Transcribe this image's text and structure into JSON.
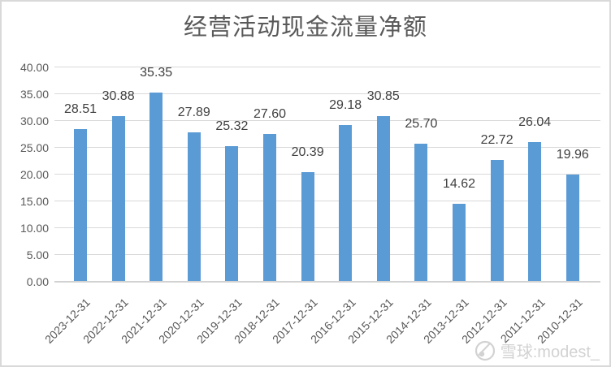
{
  "chart_data": {
    "type": "bar",
    "title": "经营活动现金流量净额",
    "categories": [
      "2023-12-31",
      "2022-12-31",
      "2021-12-31",
      "2020-12-31",
      "2019-12-31",
      "2018-12-31",
      "2017-12-31",
      "2016-12-31",
      "2015-12-31",
      "2014-12-31",
      "2013-12-31",
      "2012-12-31",
      "2011-12-31",
      "2010-12-31"
    ],
    "values": [
      28.51,
      30.88,
      35.35,
      27.89,
      25.32,
      27.6,
      20.39,
      29.18,
      30.85,
      25.7,
      14.62,
      22.72,
      26.04,
      19.96
    ],
    "data_labels": [
      "28.51",
      "30.88",
      "35.35",
      "27.89",
      "25.32",
      "27.60",
      "20.39",
      "29.18",
      "30.85",
      "25.70",
      "14.62",
      "22.72",
      "26.04",
      "19.96"
    ],
    "xlabel": "",
    "ylabel": "",
    "ylim": [
      0,
      40
    ],
    "ytick_step": 5,
    "y_tick_labels": [
      "0.00",
      "5.00",
      "10.00",
      "15.00",
      "20.00",
      "25.00",
      "30.00",
      "35.00",
      "40.00"
    ],
    "grid": true,
    "legend": "none",
    "bar_color": "#5b9bd5"
  },
  "watermark": {
    "logo": "xueqiu-snowball-logo",
    "text": "雪球:modest_"
  },
  "colors": {
    "bar": "#5b9bd5",
    "gridline": "#d9d9d9",
    "axis_line": "#d2d2d2",
    "title_text": "#595959",
    "tick_text": "#595959",
    "data_label_text": "#404040",
    "watermark_text": "#d2d2d2",
    "frame_border": "#d9d9d9",
    "background": "#ffffff"
  }
}
